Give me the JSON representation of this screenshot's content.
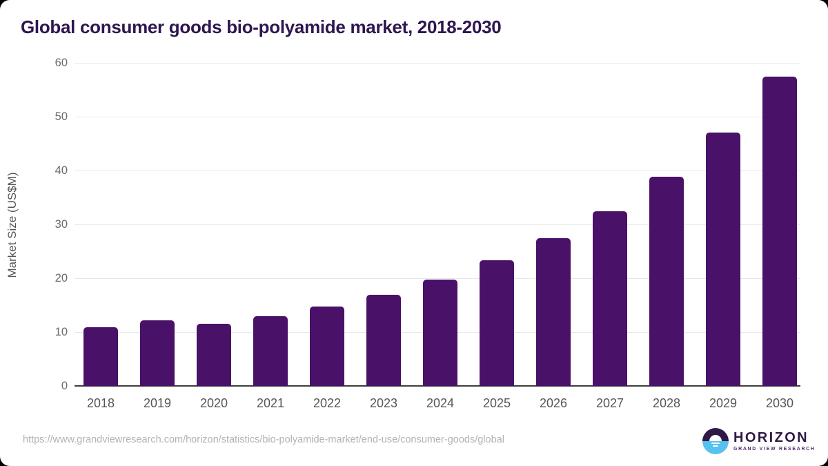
{
  "title": "Global consumer goods bio-polyamide market, 2018-2030",
  "chart_data": {
    "type": "bar",
    "categories": [
      "2018",
      "2019",
      "2020",
      "2021",
      "2022",
      "2023",
      "2024",
      "2025",
      "2026",
      "2027",
      "2028",
      "2029",
      "2030"
    ],
    "values": [
      10.9,
      12.2,
      11.5,
      13.0,
      14.8,
      16.9,
      19.8,
      23.3,
      27.4,
      32.5,
      38.9,
      47.1,
      57.4
    ],
    "title": "Global consumer goods bio-polyamide market, 2018-2030",
    "xlabel": "",
    "ylabel": "Market Size (US$M)",
    "ylim": [
      0,
      60
    ],
    "yticks": [
      0,
      10,
      20,
      30,
      40,
      50,
      60
    ],
    "grid": true,
    "legend": "none",
    "bar_color": "#491168"
  },
  "colors": {
    "title": "#2e1650",
    "bar": "#491168",
    "gridline": "#e8e8e8",
    "axis_line": "#3d3d3d",
    "tick_label": "#6b6b6b",
    "category_label": "#565656",
    "footer_url": "#b2b2b2",
    "logo_purple": "#2e1a47",
    "logo_blue": "#55c2ef"
  },
  "footer": {
    "source_url": "https://www.grandviewresearch.com/horizon/statistics/bio-polyamide-market/end-use/consumer-goods/global",
    "logo_brand": "HORIZON",
    "logo_subbrand": "GRAND VIEW RESEARCH"
  }
}
